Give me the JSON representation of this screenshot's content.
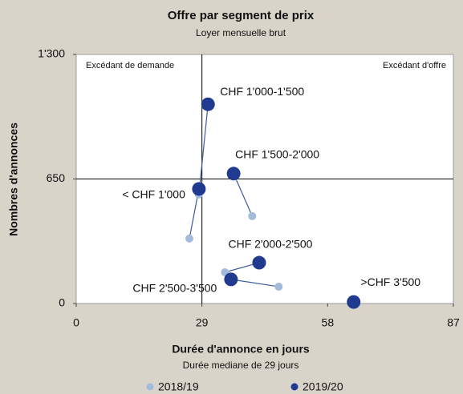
{
  "chart_data": {
    "type": "scatter",
    "title": "Offre par segment de prix",
    "subtitle": "Loyer mensuelle brut",
    "xlabel": "Durée d'annonce en jours",
    "xlabel_note": "Durée mediane de 29 jours",
    "ylabel": "Nombres d'annonces",
    "annotations": [
      "Excédant de demande",
      "Excédant d'offre"
    ],
    "categories": [
      "< CHF 1'000",
      "CHF 1'000-1'500",
      "CHF 1'500-2'000",
      "CHF 2'000-2'500",
      "CHF 2'500-3'500",
      ">CHF 3'500"
    ],
    "series": [
      {
        "name": "2018/19",
        "color": "#a3bbdb",
        "x": [
          26.1,
          28.3,
          40.6,
          34.3,
          46.7,
          64
        ],
        "values": [
          339,
          569,
          456,
          163,
          88,
          8
        ]
      },
      {
        "name": "2019/20",
        "color": "#1f3a8f",
        "x": [
          28.3,
          30.4,
          36.3,
          42.2,
          35.7,
          64
        ],
        "values": [
          598,
          1040,
          678,
          213,
          126,
          8
        ]
      }
    ],
    "reference_lines": {
      "x": 29,
      "y": 650
    },
    "xlim": [
      0,
      87
    ],
    "xticks": [
      0,
      29,
      58,
      87
    ],
    "ylim": [
      0,
      1300
    ],
    "yticks": [
      0,
      650,
      {
        "value": 1300,
        "label": "1'300"
      }
    ]
  }
}
